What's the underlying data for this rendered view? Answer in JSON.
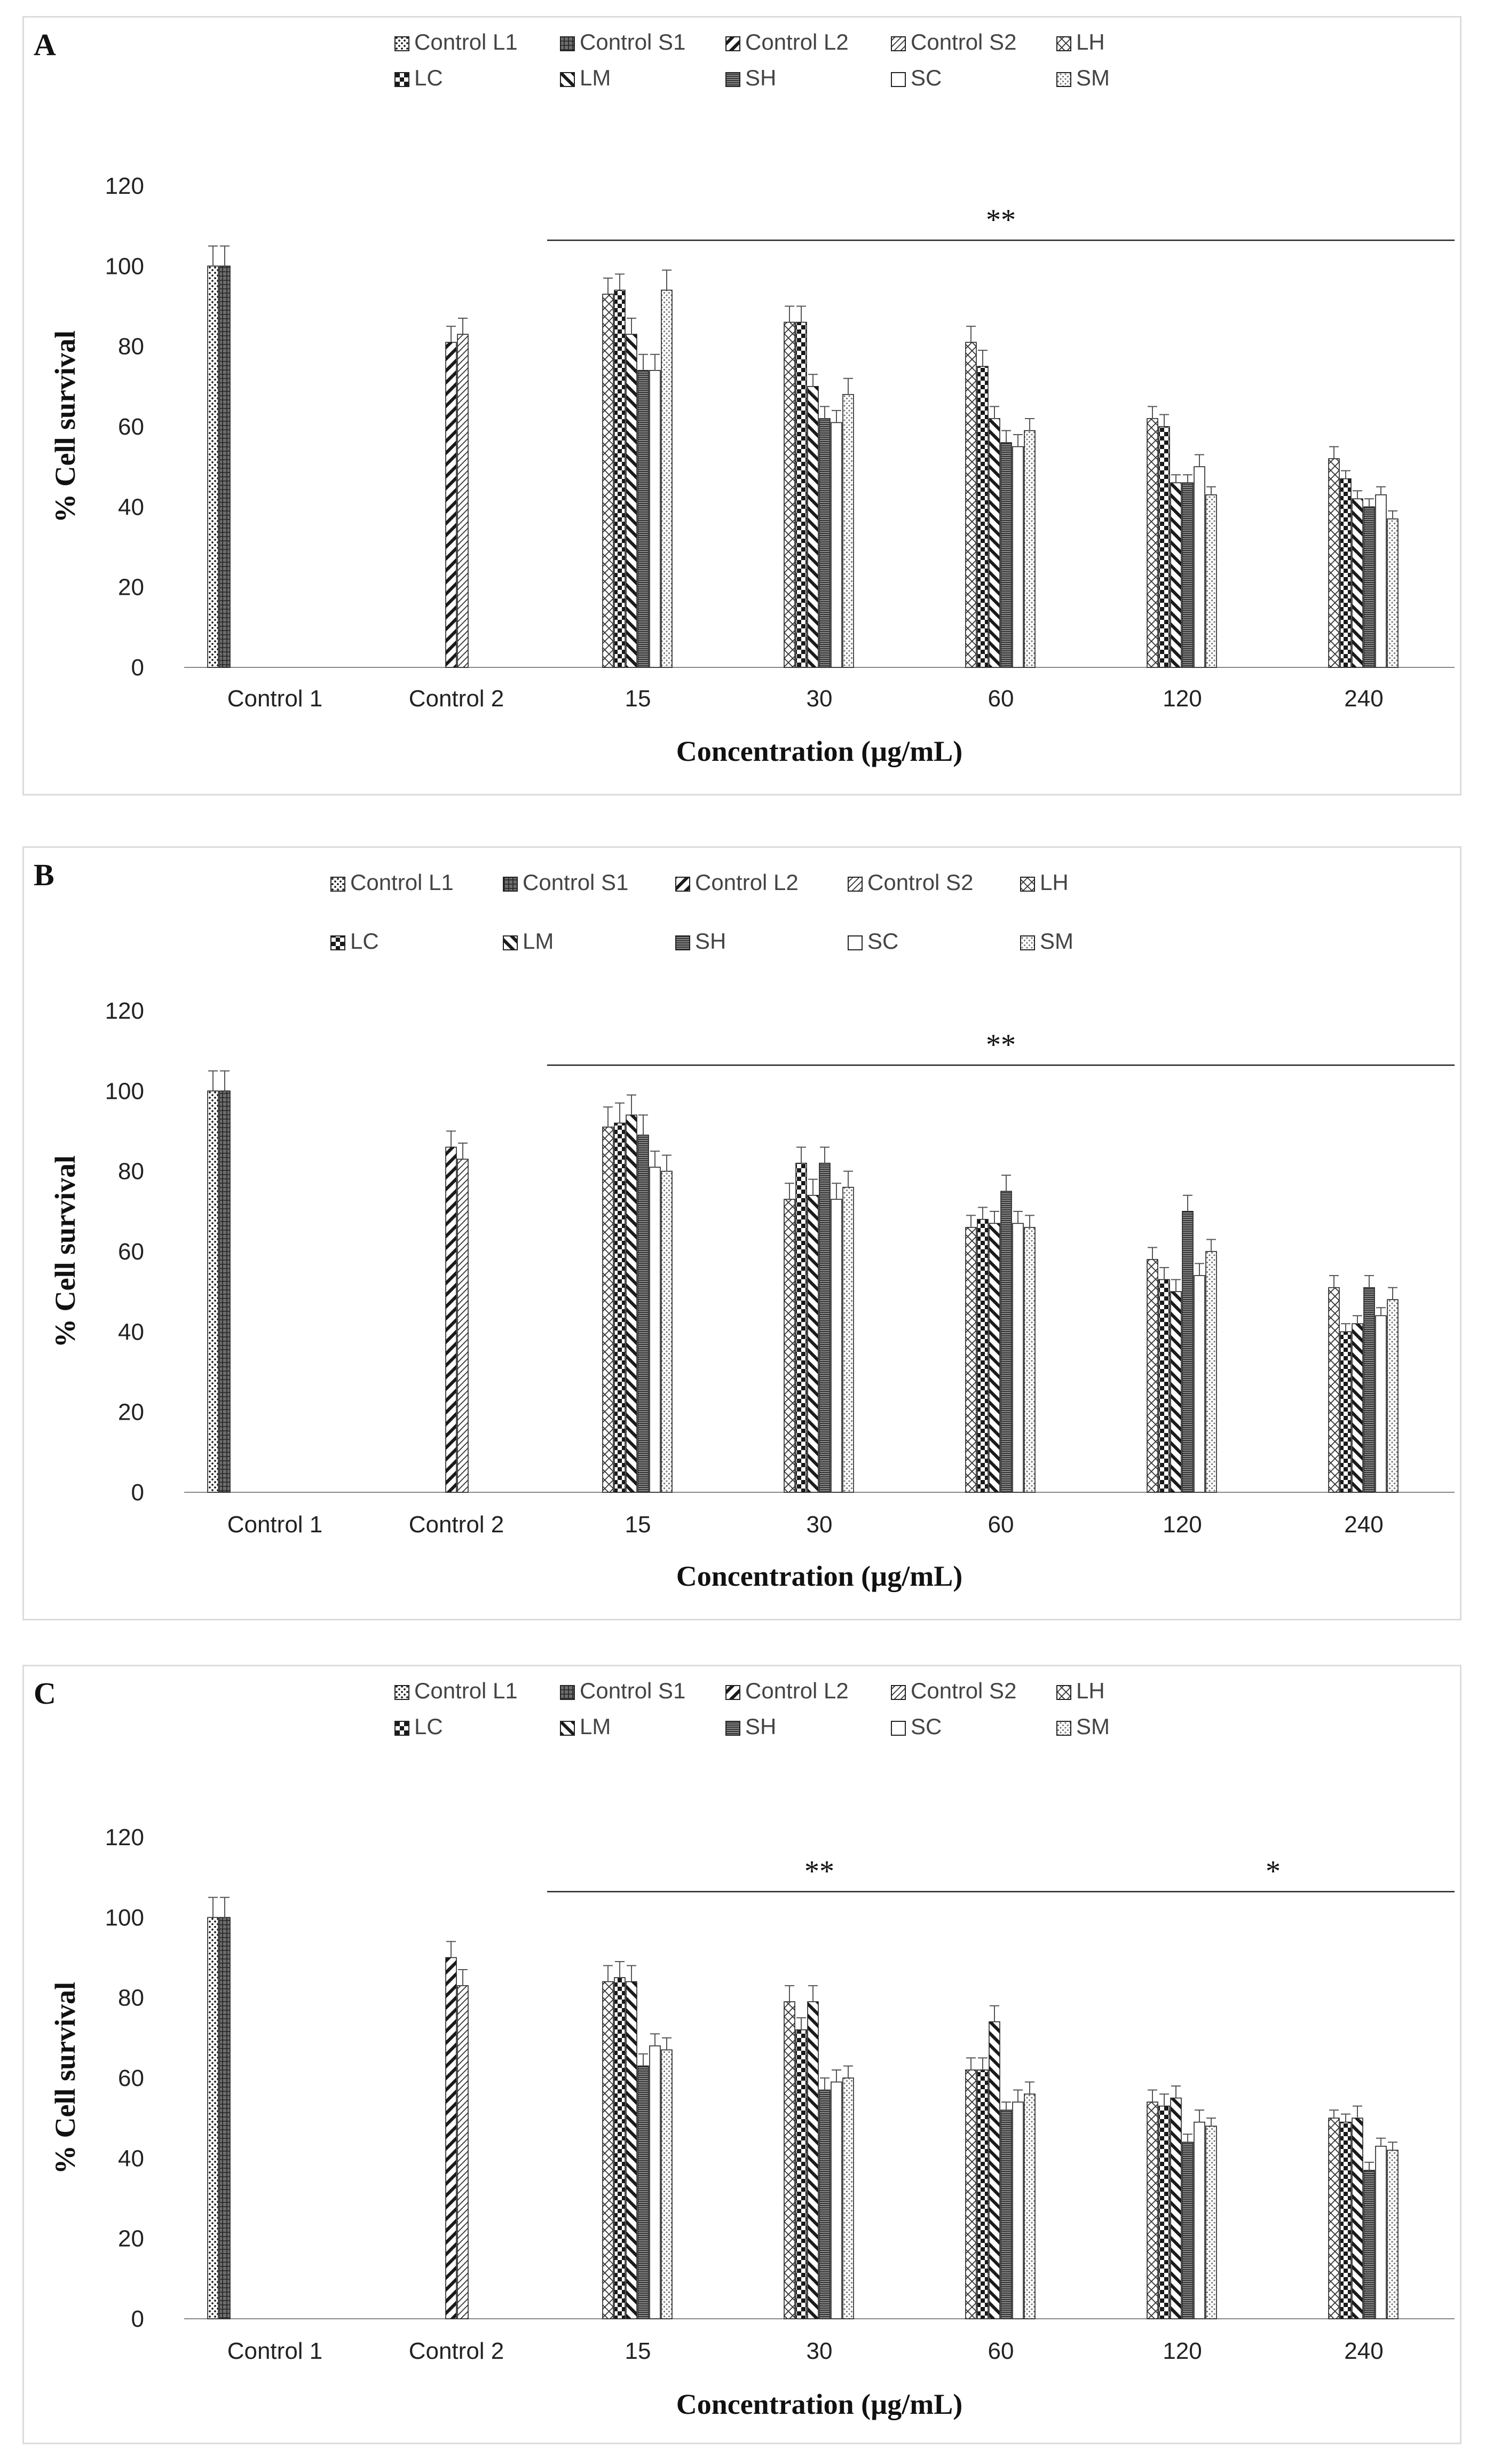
{
  "legend_names": [
    "Control L1",
    "Control S1",
    "Control L2",
    "Control S2",
    "LH",
    "LC",
    "LM",
    "SH",
    "SC",
    "SM"
  ],
  "chart_data": [
    {
      "panel": "A",
      "type": "bar",
      "xlabel": "Concentration (µg/mL)",
      "ylabel": "% Cell survival",
      "ylim": [
        0,
        120
      ],
      "yticks": [
        0,
        20,
        40,
        60,
        80,
        100,
        120
      ],
      "categories": [
        "Control 1",
        "Control 2",
        "15",
        "30",
        "60",
        "120",
        "240"
      ],
      "series": [
        {
          "name": "Control L1",
          "values": [
            100,
            null,
            null,
            null,
            null,
            null,
            null
          ],
          "errors": [
            5,
            null,
            null,
            null,
            null,
            null,
            null
          ]
        },
        {
          "name": "Control S1",
          "values": [
            100,
            null,
            null,
            null,
            null,
            null,
            null
          ],
          "errors": [
            5,
            null,
            null,
            null,
            null,
            null,
            null
          ]
        },
        {
          "name": "Control L2",
          "values": [
            null,
            81,
            null,
            null,
            null,
            null,
            null
          ],
          "errors": [
            null,
            4,
            null,
            null,
            null,
            null,
            null
          ]
        },
        {
          "name": "Control S2",
          "values": [
            null,
            83,
            null,
            null,
            null,
            null,
            null
          ],
          "errors": [
            null,
            4,
            null,
            null,
            null,
            null,
            null
          ]
        },
        {
          "name": "LH",
          "values": [
            null,
            null,
            93,
            86,
            81,
            62,
            52
          ],
          "errors": [
            null,
            null,
            4,
            4,
            4,
            3,
            3
          ]
        },
        {
          "name": "LC",
          "values": [
            null,
            null,
            94,
            86,
            75,
            60,
            47
          ],
          "errors": [
            null,
            null,
            4,
            4,
            4,
            3,
            2
          ]
        },
        {
          "name": "LM",
          "values": [
            null,
            null,
            83,
            70,
            62,
            46,
            42
          ],
          "errors": [
            null,
            null,
            4,
            3,
            3,
            2,
            2
          ]
        },
        {
          "name": "SH",
          "values": [
            null,
            null,
            74,
            62,
            56,
            46,
            40
          ],
          "errors": [
            null,
            null,
            4,
            3,
            3,
            2,
            2
          ]
        },
        {
          "name": "SC",
          "values": [
            null,
            null,
            74,
            61,
            55,
            50,
            43
          ],
          "errors": [
            null,
            null,
            4,
            3,
            3,
            3,
            2
          ]
        },
        {
          "name": "SM",
          "values": [
            null,
            null,
            94,
            68,
            59,
            43,
            37
          ],
          "errors": [
            null,
            null,
            5,
            4,
            3,
            2,
            2
          ]
        }
      ],
      "significance": [
        {
          "label": "**",
          "from": "15",
          "to": "240"
        }
      ]
    },
    {
      "panel": "B",
      "type": "bar",
      "xlabel": "Concentration (µg/mL)",
      "ylabel": "% Cell survival",
      "ylim": [
        0,
        120
      ],
      "yticks": [
        0,
        20,
        40,
        60,
        80,
        100,
        120
      ],
      "categories": [
        "Control 1",
        "Control 2",
        "15",
        "30",
        "60",
        "120",
        "240"
      ],
      "series": [
        {
          "name": "Control L1",
          "values": [
            100,
            null,
            null,
            null,
            null,
            null,
            null
          ],
          "errors": [
            5,
            null,
            null,
            null,
            null,
            null,
            null
          ]
        },
        {
          "name": "Control S1",
          "values": [
            100,
            null,
            null,
            null,
            null,
            null,
            null
          ],
          "errors": [
            5,
            null,
            null,
            null,
            null,
            null,
            null
          ]
        },
        {
          "name": "Control L2",
          "values": [
            null,
            86,
            null,
            null,
            null,
            null,
            null
          ],
          "errors": [
            null,
            4,
            null,
            null,
            null,
            null,
            null
          ]
        },
        {
          "name": "Control S2",
          "values": [
            null,
            83,
            null,
            null,
            null,
            null,
            null
          ],
          "errors": [
            null,
            4,
            null,
            null,
            null,
            null,
            null
          ]
        },
        {
          "name": "LH",
          "values": [
            null,
            null,
            91,
            73,
            66,
            58,
            51
          ],
          "errors": [
            null,
            null,
            5,
            4,
            3,
            3,
            3
          ]
        },
        {
          "name": "LC",
          "values": [
            null,
            null,
            92,
            82,
            68,
            53,
            40
          ],
          "errors": [
            null,
            null,
            5,
            4,
            3,
            3,
            2
          ]
        },
        {
          "name": "LM",
          "values": [
            null,
            null,
            94,
            74,
            67,
            50,
            42
          ],
          "errors": [
            null,
            null,
            5,
            4,
            3,
            3,
            2
          ]
        },
        {
          "name": "SH",
          "values": [
            null,
            null,
            89,
            82,
            75,
            70,
            51
          ],
          "errors": [
            null,
            null,
            5,
            4,
            4,
            4,
            3
          ]
        },
        {
          "name": "SC",
          "values": [
            null,
            null,
            81,
            73,
            67,
            54,
            44
          ],
          "errors": [
            null,
            null,
            4,
            4,
            3,
            3,
            2
          ]
        },
        {
          "name": "SM",
          "values": [
            null,
            null,
            80,
            76,
            66,
            60,
            48
          ],
          "errors": [
            null,
            null,
            4,
            4,
            3,
            3,
            3
          ]
        }
      ],
      "significance": [
        {
          "label": "**",
          "from": "15",
          "to": "240"
        }
      ]
    },
    {
      "panel": "C",
      "type": "bar",
      "xlabel": "Concentration (µg/mL)",
      "ylabel": "% Cell survival",
      "ylim": [
        0,
        120
      ],
      "yticks": [
        0,
        20,
        40,
        60,
        80,
        100,
        120
      ],
      "categories": [
        "Control 1",
        "Control 2",
        "15",
        "30",
        "60",
        "120",
        "240"
      ],
      "series": [
        {
          "name": "Control L1",
          "values": [
            100,
            null,
            null,
            null,
            null,
            null,
            null
          ],
          "errors": [
            5,
            null,
            null,
            null,
            null,
            null,
            null
          ]
        },
        {
          "name": "Control S1",
          "values": [
            100,
            null,
            null,
            null,
            null,
            null,
            null
          ],
          "errors": [
            5,
            null,
            null,
            null,
            null,
            null,
            null
          ]
        },
        {
          "name": "Control L2",
          "values": [
            null,
            90,
            null,
            null,
            null,
            null,
            null
          ],
          "errors": [
            null,
            4,
            null,
            null,
            null,
            null,
            null
          ]
        },
        {
          "name": "Control S2",
          "values": [
            null,
            83,
            null,
            null,
            null,
            null,
            null
          ],
          "errors": [
            null,
            4,
            null,
            null,
            null,
            null,
            null
          ]
        },
        {
          "name": "LH",
          "values": [
            null,
            null,
            84,
            79,
            62,
            54,
            50
          ],
          "errors": [
            null,
            null,
            4,
            4,
            3,
            3,
            2
          ]
        },
        {
          "name": "LC",
          "values": [
            null,
            null,
            85,
            72,
            62,
            53,
            49
          ],
          "errors": [
            null,
            null,
            4,
            3,
            3,
            3,
            2
          ]
        },
        {
          "name": "LM",
          "values": [
            null,
            null,
            84,
            79,
            74,
            55,
            50
          ],
          "errors": [
            null,
            null,
            4,
            4,
            4,
            3,
            3
          ]
        },
        {
          "name": "SH",
          "values": [
            null,
            null,
            63,
            57,
            52,
            44,
            37
          ],
          "errors": [
            null,
            null,
            3,
            3,
            2,
            2,
            2
          ]
        },
        {
          "name": "SC",
          "values": [
            null,
            null,
            68,
            59,
            54,
            49,
            43
          ],
          "errors": [
            null,
            null,
            3,
            3,
            3,
            3,
            2
          ]
        },
        {
          "name": "SM",
          "values": [
            null,
            null,
            67,
            60,
            56,
            48,
            42
          ],
          "errors": [
            null,
            null,
            3,
            3,
            3,
            2,
            2
          ]
        }
      ],
      "significance": [
        {
          "label": "**",
          "from": "15",
          "to": "60"
        },
        {
          "label": "*",
          "from": "120",
          "to": "240"
        }
      ]
    }
  ]
}
